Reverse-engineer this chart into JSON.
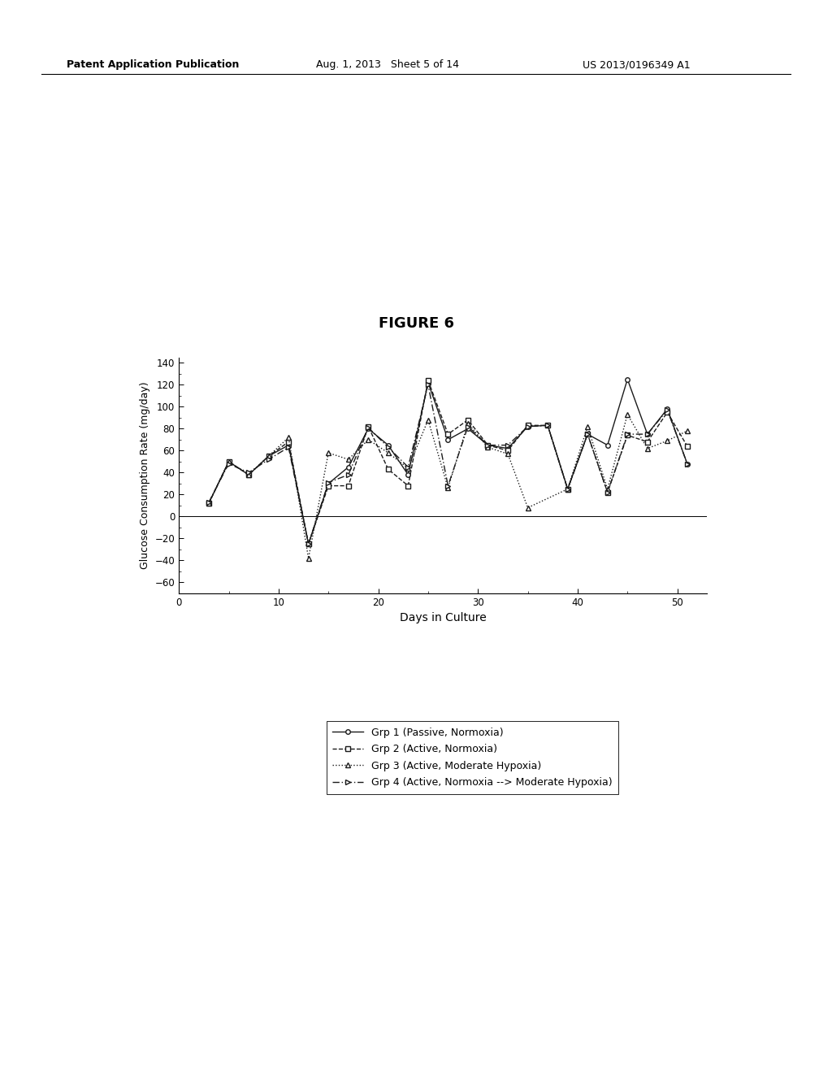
{
  "title": "FIGURE 6",
  "xlabel": "Days in Culture",
  "ylabel": "Glucose Consumption Rate (mg/day)",
  "xlim": [
    0,
    53
  ],
  "ylim": [
    -70,
    145
  ],
  "yticks": [
    -60,
    -40,
    -20,
    0,
    20,
    40,
    60,
    80,
    100,
    120,
    140
  ],
  "xticks": [
    0,
    10,
    20,
    30,
    40,
    50
  ],
  "grp1": {
    "label": "Grp 1 (Passive, Normoxia)",
    "x": [
      3,
      5,
      7,
      9,
      11,
      13,
      15,
      17,
      19,
      21,
      23,
      25,
      27,
      29,
      31,
      33,
      35,
      37,
      39,
      41,
      43,
      45,
      47,
      49,
      51
    ],
    "y": [
      12,
      50,
      38,
      55,
      65,
      -25,
      30,
      45,
      80,
      65,
      38,
      122,
      70,
      80,
      65,
      62,
      82,
      83,
      25,
      75,
      65,
      125,
      75,
      98,
      48
    ]
  },
  "grp2": {
    "label": "Grp 2 (Active, Normoxia)",
    "x": [
      3,
      5,
      7,
      9,
      11,
      13,
      15,
      17,
      19,
      21,
      23,
      25,
      27,
      29,
      31,
      33,
      35,
      37,
      39,
      41,
      43,
      45,
      47,
      49,
      51
    ],
    "y": [
      12,
      50,
      38,
      55,
      68,
      -25,
      28,
      28,
      82,
      43,
      28,
      124,
      75,
      88,
      65,
      60,
      83,
      83,
      25,
      75,
      22,
      74,
      68,
      95,
      64
    ]
  },
  "grp3": {
    "label": "Grp 3 (Active, Moderate Hypoxia)",
    "x": [
      3,
      5,
      7,
      9,
      11,
      13,
      15,
      17,
      19,
      21,
      23,
      25,
      27,
      29,
      31,
      33,
      35,
      39,
      41,
      43,
      45,
      47,
      49,
      51
    ],
    "y": [
      12,
      50,
      38,
      55,
      72,
      -38,
      58,
      52,
      70,
      58,
      44,
      88,
      26,
      85,
      63,
      57,
      8,
      25,
      82,
      25,
      93,
      62,
      69,
      78
    ]
  },
  "grp4": {
    "label": "Grp 4 (Active, Normoxia --> Moderate Hypoxia)",
    "x": [
      3,
      5,
      7,
      9,
      11,
      13,
      15,
      17,
      19,
      21,
      23,
      25,
      27,
      29,
      31,
      33,
      35,
      37,
      39,
      41,
      43,
      45,
      47,
      49,
      51
    ],
    "y": [
      13,
      48,
      40,
      52,
      63,
      -25,
      31,
      38,
      81,
      63,
      45,
      120,
      28,
      82,
      65,
      65,
      82,
      83,
      25,
      75,
      22,
      75,
      75,
      97,
      48
    ]
  },
  "header_left": "Patent Application Publication",
  "header_mid": "Aug. 1, 2013   Sheet 5 of 14",
  "header_right": "US 2013/0196349 A1"
}
